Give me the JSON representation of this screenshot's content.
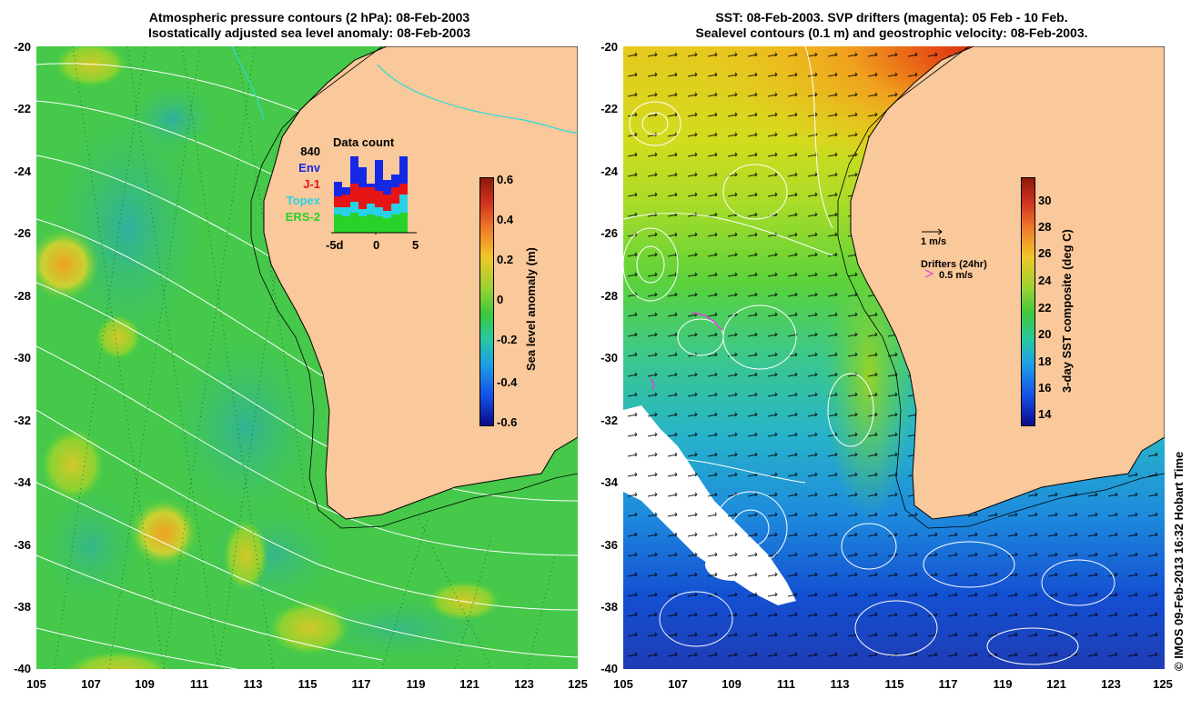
{
  "left_panel": {
    "title_line1": "Atmospheric pressure contours (2 hPa): 08-Feb-2003",
    "title_line2": "Isostatically adjusted sea level anomaly: 08-Feb-2003",
    "y_ticks": [
      "-20",
      "-22",
      "-24",
      "-26",
      "-28",
      "-30",
      "-32",
      "-34",
      "-36",
      "-38",
      "-40"
    ],
    "x_ticks": [
      "105",
      "107",
      "109",
      "111",
      "113",
      "115",
      "117",
      "119",
      "121",
      "123",
      "125"
    ],
    "colorbar": {
      "label": "Sea level anomaly (m)",
      "ticks": [
        "0.6",
        "0.4",
        "0.2",
        "0",
        "-0.2",
        "-0.4",
        "-0.6"
      ],
      "range": [
        -0.6,
        0.6
      ]
    },
    "inset": {
      "title": "Data count",
      "count": "840",
      "legend": [
        {
          "label": "Env",
          "color": "#1428e6"
        },
        {
          "label": "J-1",
          "color": "#e61414"
        },
        {
          "label": "Topex",
          "color": "#28d2e6"
        },
        {
          "label": "ERS-2",
          "color": "#28d228"
        }
      ],
      "x_ticks": [
        "-5d",
        "0",
        "5"
      ]
    }
  },
  "right_panel": {
    "title_line1": "SST: 08-Feb-2003. SVP drifters (magenta): 05 Feb - 10 Feb.",
    "title_line2": "Sealevel contours (0.1 m) and geostrophic velocity: 08-Feb-2003.",
    "y_ticks": [
      "-20",
      "-22",
      "-24",
      "-26",
      "-28",
      "-30",
      "-32",
      "-34",
      "-36",
      "-38",
      "-40"
    ],
    "x_ticks": [
      "105",
      "107",
      "109",
      "111",
      "113",
      "115",
      "117",
      "119",
      "121",
      "123",
      "125"
    ],
    "colorbar": {
      "label": "3-day SST composite (deg C)",
      "ticks": [
        "30",
        "28",
        "26",
        "24",
        "22",
        "20",
        "18",
        "16",
        "14"
      ],
      "range": [
        13,
        31.5
      ]
    },
    "velocity_scale": "1 m/s",
    "drifters_label": "Drifters (24hr)",
    "drifters_scale": "0.5 m/s"
  },
  "credit": "© IMOS 09-Feb-2013 16:32 Hobart Time",
  "colors": {
    "land": "#f9c89b",
    "ocean_green": "#3cc83c",
    "drifter": "#e040e0"
  }
}
